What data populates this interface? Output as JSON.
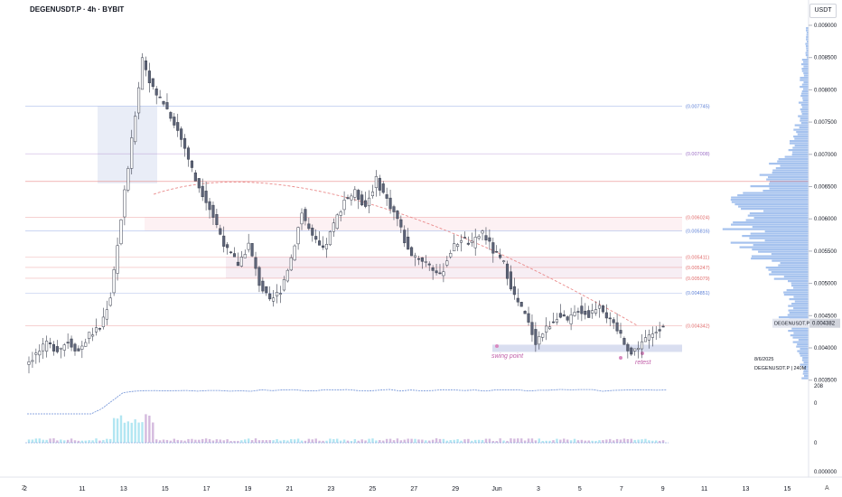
{
  "header": {
    "ticker": "DEGENUSDT.P · 4h · BYBIT",
    "currency": "USDT"
  },
  "price_axis": {
    "ticks": [
      "0.009000",
      "0.008500",
      "0.008000",
      "0.007500",
      "0.007000",
      "0.006500",
      "0.006000",
      "0.005500",
      "0.005000",
      "0.004500",
      "0.004000",
      "0.003500"
    ],
    "current_symbol": "DEGENUSDT.P",
    "current_price": "0.004382",
    "indicator_ticks": [
      "208",
      "0",
      "0",
      "0.000000"
    ]
  },
  "time_axis": {
    "labels": [
      "2",
      "11",
      "13",
      "15",
      "17",
      "19",
      "21",
      "23",
      "25",
      "27",
      "29",
      "Jun",
      "3",
      "5",
      "7",
      "9",
      "11",
      "13",
      "15"
    ]
  },
  "level_labels": [
    {
      "text": "(0.007745)",
      "price": 0.007745,
      "color": "#5b7fd6"
    },
    {
      "text": "(0.007008)",
      "price": 0.007008,
      "color": "#9c6fc6"
    },
    {
      "text": "(0.006024)",
      "price": 0.006024,
      "color": "#e06a6a"
    },
    {
      "text": "(0.005816)",
      "price": 0.005816,
      "color": "#5b7fd6"
    },
    {
      "text": "(0.005411)",
      "price": 0.005411,
      "color": "#e06a6a"
    },
    {
      "text": "(0.005247)",
      "price": 0.005247,
      "color": "#e06a6a"
    },
    {
      "text": "(0.005079)",
      "price": 0.005079,
      "color": "#e06a6a"
    },
    {
      "text": "(0.004851)",
      "price": 0.004851,
      "color": "#5b7fd6"
    },
    {
      "text": "(0.004342)",
      "price": 0.004342,
      "color": "#e06a6a"
    }
  ],
  "annotations": [
    {
      "text": "swing point",
      "color": "#c05fa8"
    },
    {
      "text": "retest",
      "color": "#c05fa8"
    }
  ],
  "info_box": {
    "date": "8/6/2025",
    "symbol_line": "DEGENUSDT.P  |  240M"
  },
  "corners": {
    "left": "Z",
    "right": "A"
  },
  "colors": {
    "up": "#ffffff",
    "down": "#5d6478",
    "level_blue": "#5b7fd6",
    "level_red": "#e06a6a",
    "profile": "#5b8fe0",
    "volume": "#7fd3e8"
  },
  "chart_data": {
    "type": "candlestick",
    "title": "DEGENUSDT.P · 4h · BYBIT",
    "ylim": [
      0.0035,
      0.0091
    ],
    "close_series": [
      0.00375,
      0.0039,
      0.00405,
      0.00398,
      0.0041,
      0.00395,
      0.0042,
      0.0043,
      0.0048,
      0.006,
      0.0072,
      0.0085,
      0.008,
      0.0078,
      0.0075,
      0.0071,
      0.0066,
      0.0063,
      0.0059,
      0.0055,
      0.0053,
      0.0056,
      0.005,
      0.0047,
      0.0049,
      0.0054,
      0.0061,
      0.0057,
      0.0055,
      0.0059,
      0.0063,
      0.0064,
      0.0062,
      0.0066,
      0.0063,
      0.006,
      0.0055,
      0.0054,
      0.0053,
      0.0051,
      0.0055,
      0.0057,
      0.0056,
      0.0058,
      0.0055,
      0.0053,
      0.0048,
      0.0045,
      0.0041,
      0.0043,
      0.0045,
      0.0044,
      0.0046,
      0.0045,
      0.0047,
      0.0044,
      0.0042,
      0.0039,
      0.0041,
      0.0042,
      0.00438
    ]
  }
}
